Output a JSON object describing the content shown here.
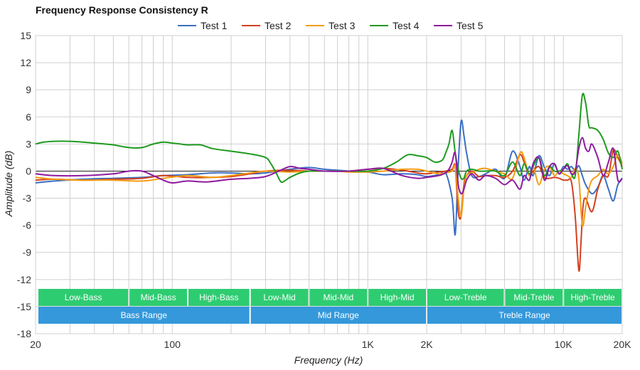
{
  "chart_data": {
    "type": "line",
    "title": "Frequency Response Consistency R",
    "xlabel": "Frequency (Hz)",
    "ylabel": "Amplitude (dB)",
    "x_scale": "log",
    "xlim": [
      20,
      20000
    ],
    "ylim": [
      -18,
      15
    ],
    "grid": true,
    "legend_position": "top-center",
    "x_ticks": [
      {
        "value": 20,
        "label": "20"
      },
      {
        "value": 100,
        "label": "100"
      },
      {
        "value": 1000,
        "label": "1K"
      },
      {
        "value": 2000,
        "label": "2K"
      },
      {
        "value": 10000,
        "label": "10K"
      },
      {
        "value": 20000,
        "label": "20K"
      }
    ],
    "y_ticks": [
      15,
      12,
      9,
      6,
      3,
      0,
      -3,
      -6,
      -9,
      -12,
      -15,
      -18
    ],
    "series": [
      {
        "name": "Test 1",
        "color": "#3a6fc4",
        "x": [
          20,
          25,
          35,
          50,
          70,
          90,
          120,
          160,
          200,
          250,
          300,
          400,
          500,
          600,
          700,
          800,
          1000,
          1200,
          1500,
          1800,
          2000,
          2300,
          2500,
          2700,
          2800,
          2900,
          3000,
          3100,
          3200,
          3400,
          3700,
          4000,
          4500,
          5000,
          5500,
          6000,
          6300,
          6700,
          7000,
          7500,
          8000,
          8500,
          9000,
          9500,
          10000,
          10500,
          11000,
          11500,
          12000,
          12500,
          13000,
          14000,
          15000,
          16000,
          17000,
          18000,
          19000,
          20000
        ],
        "y": [
          -1.3,
          -1.1,
          -0.9,
          -0.8,
          -0.7,
          -0.5,
          -0.4,
          -0.2,
          -0.2,
          -0.3,
          -0.2,
          0.2,
          0.4,
          0.2,
          0.1,
          0.0,
          -0.1,
          -0.4,
          -0.3,
          -0.4,
          -0.6,
          -0.4,
          -0.2,
          -3.0,
          -7.0,
          0.5,
          5.5,
          4.0,
          2.0,
          -0.5,
          -0.6,
          -0.3,
          0.2,
          -0.8,
          2.2,
          0.5,
          -1.0,
          0.5,
          -0.5,
          1.7,
          0.4,
          -0.5,
          0.8,
          -0.3,
          0.5,
          0.2,
          0.5,
          0.0,
          0.6,
          -0.5,
          -1.5,
          -2.5,
          -1.8,
          -0.5,
          -2.0,
          -3.3,
          -1.5,
          -0.8
        ]
      },
      {
        "name": "Test 2",
        "color": "#d2401e",
        "x": [
          20,
          25,
          35,
          50,
          70,
          90,
          120,
          160,
          200,
          250,
          300,
          400,
          500,
          600,
          700,
          800,
          1000,
          1200,
          1500,
          1800,
          2000,
          2300,
          2500,
          2700,
          2800,
          2900,
          3000,
          3100,
          3200,
          3400,
          3700,
          4000,
          4500,
          5000,
          5500,
          6000,
          6300,
          6700,
          7000,
          7500,
          8000,
          8500,
          9000,
          9500,
          10000,
          10500,
          11000,
          11500,
          12000,
          12300,
          12600,
          13000,
          14000,
          15000,
          16000,
          17000,
          18000,
          19000,
          20000
        ],
        "y": [
          -1.0,
          -0.9,
          -1.0,
          -0.9,
          -0.8,
          -0.5,
          -0.7,
          -0.7,
          -0.6,
          -0.3,
          0.0,
          0.1,
          0.0,
          0.0,
          0.0,
          0.0,
          0.2,
          0.3,
          0.1,
          -0.2,
          -0.3,
          -0.1,
          0.0,
          0.2,
          0.5,
          -4.5,
          -5.0,
          -1.5,
          -0.5,
          0.0,
          -0.6,
          -0.5,
          -0.5,
          -0.7,
          0.0,
          1.8,
          1.0,
          -0.5,
          0.0,
          0.5,
          -0.7,
          -0.8,
          -0.7,
          -0.8,
          -1.0,
          -1.0,
          -1.2,
          -5.0,
          -11.0,
          -8.0,
          -4.0,
          -3.0,
          -4.5,
          -2.0,
          -0.5,
          -0.5,
          2.3,
          1.5,
          0.5
        ]
      },
      {
        "name": "Test 3",
        "color": "#f39c12",
        "x": [
          20,
          25,
          35,
          50,
          70,
          90,
          120,
          160,
          200,
          250,
          300,
          400,
          500,
          600,
          700,
          800,
          1000,
          1200,
          1500,
          1800,
          2000,
          2300,
          2500,
          2700,
          2800,
          2900,
          3000,
          3100,
          3200,
          3400,
          3700,
          4000,
          4500,
          5000,
          5500,
          6000,
          6300,
          6700,
          7000,
          7500,
          8000,
          8500,
          9000,
          9500,
          10000,
          10500,
          11000,
          11500,
          12000,
          12500,
          13000,
          13500,
          14000,
          15000,
          16000,
          17000,
          18000,
          19000,
          20000
        ],
        "y": [
          -0.7,
          -0.9,
          -1.0,
          -1.0,
          -1.1,
          -0.8,
          -0.5,
          -0.7,
          -0.5,
          -0.2,
          0.0,
          -0.1,
          0.0,
          0.0,
          0.0,
          -0.1,
          -0.1,
          0.0,
          0.2,
          0.2,
          0.0,
          -0.3,
          -0.2,
          0.0,
          0.5,
          -3.0,
          -5.0,
          -2.0,
          -0.5,
          -0.2,
          0.2,
          0.3,
          0.0,
          -0.3,
          -0.8,
          2.0,
          1.5,
          -0.5,
          0.5,
          -1.5,
          0.2,
          0.5,
          -0.5,
          0.0,
          -0.3,
          -0.5,
          -0.7,
          0.3,
          -0.8,
          -6.0,
          -4.0,
          -2.0,
          -1.0,
          -0.5,
          0.2,
          -0.3,
          0.5,
          1.8,
          0.8
        ]
      },
      {
        "name": "Test 4",
        "color": "#1f9a1f",
        "x": [
          20,
          22,
          25,
          30,
          35,
          40,
          50,
          60,
          70,
          80,
          90,
          100,
          110,
          120,
          140,
          160,
          200,
          250,
          300,
          320,
          340,
          360,
          380,
          400,
          450,
          500,
          600,
          700,
          800,
          1000,
          1200,
          1400,
          1600,
          1800,
          2000,
          2200,
          2400,
          2500,
          2600,
          2700,
          2800,
          2900,
          3000,
          3100,
          3200,
          3400,
          3700,
          4000,
          4500,
          5000,
          5500,
          6000,
          6300,
          6700,
          7000,
          7500,
          8000,
          8500,
          9000,
          9500,
          10000,
          10500,
          11000,
          11500,
          12000,
          12500,
          13000,
          13500,
          14000,
          15000,
          16000,
          17000,
          18000,
          19000,
          20000
        ],
        "y": [
          3.0,
          3.2,
          3.3,
          3.3,
          3.2,
          3.1,
          2.9,
          2.6,
          2.6,
          3.0,
          3.2,
          3.1,
          3.0,
          2.9,
          2.9,
          2.5,
          2.2,
          1.9,
          1.5,
          0.8,
          -0.2,
          -1.2,
          -1.0,
          -0.7,
          -0.2,
          0.0,
          0.0,
          0.0,
          0.0,
          0.0,
          0.3,
          1.0,
          1.8,
          1.7,
          1.5,
          1.0,
          1.2,
          2.0,
          3.0,
          4.5,
          2.0,
          0.2,
          -0.8,
          -0.8,
          0.0,
          0.2,
          0.0,
          0.0,
          0.0,
          -0.5,
          1.0,
          -0.5,
          0.8,
          -0.3,
          0.5,
          1.5,
          -0.5,
          0.5,
          0.0,
          0.0,
          0.2,
          0.8,
          -0.3,
          -0.5,
          4.0,
          8.4,
          7.5,
          5.0,
          4.8,
          4.5,
          3.5,
          2.0,
          1.5,
          2.2,
          0.2
        ]
      },
      {
        "name": "Test 5",
        "color": "#8e1a9e",
        "x": [
          20,
          25,
          35,
          50,
          60,
          70,
          80,
          90,
          100,
          120,
          150,
          200,
          250,
          300,
          350,
          400,
          450,
          500,
          600,
          800,
          1000,
          1200,
          1500,
          1800,
          2000,
          2300,
          2500,
          2600,
          2700,
          2800,
          2900,
          3000,
          3100,
          3200,
          3400,
          3700,
          4000,
          4500,
          5000,
          5500,
          6000,
          6300,
          6700,
          7000,
          7500,
          8000,
          8500,
          9000,
          9500,
          10000,
          10500,
          11000,
          11500,
          12000,
          12500,
          13000,
          13500,
          14000,
          15000,
          16000,
          17000,
          18000,
          19000,
          20000
        ],
        "y": [
          -0.3,
          -0.5,
          -0.5,
          -0.3,
          0.0,
          0.0,
          -0.5,
          -1.0,
          -1.3,
          -1.1,
          -1.2,
          -0.9,
          -0.8,
          -0.6,
          0.0,
          0.5,
          0.3,
          0.2,
          0.0,
          0.0,
          0.2,
          0.3,
          -0.5,
          -0.8,
          -0.7,
          -0.5,
          -0.2,
          0.2,
          1.0,
          2.0,
          -1.5,
          -2.5,
          -2.0,
          -1.0,
          -0.3,
          -1.0,
          -0.5,
          -0.8,
          -1.5,
          -1.0,
          -2.0,
          -0.5,
          -1.0,
          0.8,
          1.5,
          -1.0,
          0.5,
          0.8,
          -0.3,
          0.2,
          0.6,
          -0.3,
          0.0,
          2.5,
          3.7,
          2.5,
          2.2,
          3.0,
          1.5,
          -0.5,
          1.0,
          2.5,
          -1.0,
          -0.8
        ]
      }
    ],
    "bands": [
      {
        "row": 1,
        "label": "Low-Bass",
        "from": 20,
        "to": 60
      },
      {
        "row": 1,
        "label": "Mid-Bass",
        "from": 60,
        "to": 120
      },
      {
        "row": 1,
        "label": "High-Bass",
        "from": 120,
        "to": 250
      },
      {
        "row": 1,
        "label": "Low-Mid",
        "from": 250,
        "to": 500
      },
      {
        "row": 1,
        "label": "Mid-Mid",
        "from": 500,
        "to": 1000
      },
      {
        "row": 1,
        "label": "High-Mid",
        "from": 1000,
        "to": 2000
      },
      {
        "row": 1,
        "label": "Low-Treble",
        "from": 2000,
        "to": 5000
      },
      {
        "row": 1,
        "label": "Mid-Treble",
        "from": 5000,
        "to": 10000
      },
      {
        "row": 1,
        "label": "High-Treble",
        "from": 10000,
        "to": 20000
      },
      {
        "row": 2,
        "label": "Bass Range",
        "from": 20,
        "to": 250
      },
      {
        "row": 2,
        "label": "Mid Range",
        "from": 250,
        "to": 2000
      },
      {
        "row": 2,
        "label": "Treble Range",
        "from": 2000,
        "to": 20000
      }
    ],
    "band_colors": {
      "row1": "#2ecc71",
      "row2": "#3498db"
    }
  }
}
